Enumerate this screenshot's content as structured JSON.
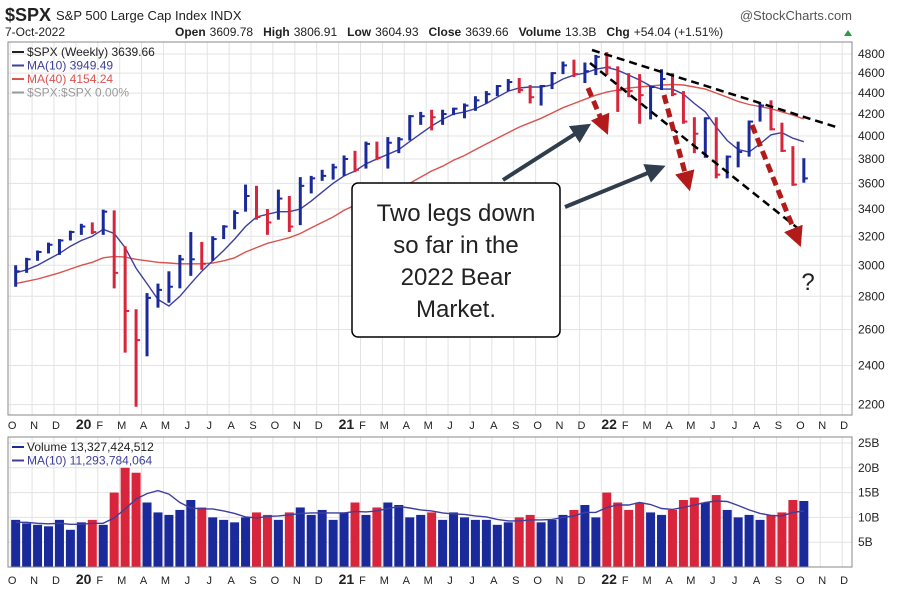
{
  "chart_data": [
    {
      "type": "hlc",
      "title": "$SPX",
      "subtitle": "S&P 500 Large Cap Index INDX",
      "source": "@StockCharts.com",
      "date": "7-Oct-2022",
      "header_items": [
        {
          "label": "Open",
          "value": 3609.78
        },
        {
          "label": "High",
          "value": 3806.91
        },
        {
          "label": "Low",
          "value": 3604.93
        },
        {
          "label": "Close",
          "value": 3639.66
        },
        {
          "label": "Volume",
          "value": "13.3B"
        },
        {
          "label": "Chg",
          "value": "+54.04 (+1.51%)"
        }
      ],
      "annotations": [
        {
          "lines": [
            "Two legs down",
            "so far in the",
            "2022 Bear",
            "Market."
          ]
        },
        {
          "lines": [
            "?"
          ]
        }
      ],
      "log_scale": true,
      "grid": true,
      "xlim": [
        -0.1,
        38.45
      ],
      "xticks": [
        {
          "value": 0,
          "label": "O"
        },
        {
          "value": 1,
          "label": "N"
        },
        {
          "value": 2,
          "label": "D"
        },
        {
          "value": 3,
          "label": "20"
        },
        {
          "value": 4,
          "label": "F"
        },
        {
          "value": 5,
          "label": "M"
        },
        {
          "value": 6,
          "label": "A"
        },
        {
          "value": 7,
          "label": "M"
        },
        {
          "value": 8,
          "label": "J"
        },
        {
          "value": 9,
          "label": "J"
        },
        {
          "value": 10,
          "label": "A"
        },
        {
          "value": 11,
          "label": "S"
        },
        {
          "value": 12,
          "label": "O"
        },
        {
          "value": 13,
          "label": "N"
        },
        {
          "value": 14,
          "label": "D"
        },
        {
          "value": 15,
          "label": "21"
        },
        {
          "value": 16,
          "label": "F"
        },
        {
          "value": 17,
          "label": "M"
        },
        {
          "value": 18,
          "label": "A"
        },
        {
          "value": 19,
          "label": "M"
        },
        {
          "value": 20,
          "label": "J"
        },
        {
          "value": 21,
          "label": "J"
        },
        {
          "value": 22,
          "label": "A"
        },
        {
          "value": 23,
          "label": "S"
        },
        {
          "value": 24,
          "label": "O"
        },
        {
          "value": 25,
          "label": "N"
        },
        {
          "value": 26,
          "label": "D"
        },
        {
          "value": 27,
          "label": "22"
        },
        {
          "value": 28,
          "label": "F"
        },
        {
          "value": 29,
          "label": "M"
        },
        {
          "value": 30,
          "label": "A"
        },
        {
          "value": 31,
          "label": "M"
        },
        {
          "value": 32,
          "label": "J"
        },
        {
          "value": 33,
          "label": "J"
        },
        {
          "value": 34,
          "label": "A"
        },
        {
          "value": 35,
          "label": "S"
        },
        {
          "value": 36,
          "label": "O"
        },
        {
          "value": 37,
          "label": "N"
        },
        {
          "value": 38,
          "label": "D"
        }
      ],
      "ylim": [
        2150,
        4930
      ],
      "yticks": [
        2200,
        2400,
        2600,
        2800,
        3000,
        3200,
        3400,
        3600,
        3800,
        4000,
        4200,
        4400,
        4600,
        4800
      ],
      "x": [
        0.25,
        0.75,
        1.25,
        1.75,
        2.25,
        2.75,
        3.25,
        3.75,
        4.25,
        4.75,
        5.25,
        5.75,
        6.25,
        6.75,
        7.25,
        7.75,
        8.25,
        8.75,
        9.25,
        9.75,
        10.25,
        10.75,
        11.25,
        11.75,
        12.25,
        12.75,
        13.25,
        13.75,
        14.25,
        14.75,
        15.25,
        15.75,
        16.25,
        16.75,
        17.25,
        17.75,
        18.25,
        18.75,
        19.25,
        19.75,
        20.25,
        20.75,
        21.25,
        21.75,
        22.25,
        22.75,
        23.25,
        23.75,
        24.25,
        24.75,
        25.25,
        25.75,
        26.25,
        26.75,
        27.25,
        27.75,
        28.25,
        28.75,
        29.25,
        29.75,
        30.25,
        30.75,
        31.25,
        31.75,
        32.25,
        32.75,
        33.25,
        33.75,
        34.25,
        34.75,
        35.25,
        35.75,
        36.25
      ],
      "series": [
        {
          "name": "$SPX (Weekly) 3639.66",
          "type": "hlc",
          "color": "#222222",
          "up_color": "#1b2a9a",
          "down_color": "#d8253c",
          "high": [
            3000,
            3050,
            3100,
            3155,
            3180,
            3240,
            3290,
            3300,
            3395,
            3390,
            3130,
            2720,
            2820,
            2880,
            2960,
            3070,
            3230,
            3160,
            3200,
            3280,
            3390,
            3590,
            3580,
            3400,
            3550,
            3500,
            3650,
            3660,
            3710,
            3760,
            3830,
            3870,
            3950,
            3950,
            3990,
            3990,
            4190,
            4220,
            4240,
            4240,
            4260,
            4300,
            4370,
            4420,
            4480,
            4540,
            4550,
            4480,
            4480,
            4610,
            4720,
            4740,
            4710,
            4790,
            4820,
            4670,
            4600,
            4590,
            4470,
            4640,
            4600,
            4420,
            4170,
            4170,
            4170,
            3830,
            3950,
            4140,
            4300,
            4330,
            4120,
            3910,
            3806.91
          ],
          "low": [
            2860,
            2950,
            3030,
            3080,
            3070,
            3170,
            3210,
            3215,
            3210,
            2850,
            2470,
            2190,
            2450,
            2730,
            2760,
            2850,
            2930,
            2970,
            3030,
            3180,
            3250,
            3380,
            3320,
            3210,
            3320,
            3230,
            3280,
            3520,
            3620,
            3630,
            3660,
            3690,
            3720,
            3790,
            3720,
            3850,
            3960,
            4100,
            4050,
            4100,
            4190,
            4160,
            4230,
            4300,
            4370,
            4420,
            4400,
            4300,
            4280,
            4440,
            4590,
            4560,
            4500,
            4580,
            4580,
            4220,
            4360,
            4110,
            4150,
            4430,
            4370,
            4110,
            3850,
            3810,
            3640,
            3640,
            3730,
            3820,
            4130,
            4050,
            3860,
            3580,
            3604.93
          ],
          "close": [
            2960,
            3040,
            3090,
            3140,
            3170,
            3230,
            3270,
            3230,
            3380,
            2950,
            2710,
            2540,
            2790,
            2840,
            2860,
            3040,
            3040,
            3010,
            3180,
            3270,
            3370,
            3500,
            3340,
            3300,
            3480,
            3270,
            3580,
            3640,
            3660,
            3730,
            3800,
            3710,
            3930,
            3810,
            3940,
            3970,
            4180,
            4180,
            4170,
            4200,
            4250,
            4280,
            4330,
            4390,
            4470,
            4510,
            4430,
            4360,
            4470,
            4600,
            4680,
            4590,
            4620,
            4770,
            4660,
            4430,
            4420,
            4380,
            4460,
            4540,
            4390,
            4130,
            4020,
            4160,
            3670,
            3820,
            3860,
            4130,
            4280,
            4060,
            3870,
            3590,
            3639.66
          ]
        },
        {
          "name": "MA(10) 3949.49",
          "type": "line",
          "color": "#3c3f9e",
          "values": [
            2950,
            2970,
            3000,
            3040,
            3080,
            3130,
            3170,
            3200,
            3250,
            3220,
            3120,
            2980,
            2880,
            2780,
            2740,
            2800,
            2880,
            2960,
            3030,
            3100,
            3180,
            3270,
            3340,
            3360,
            3380,
            3380,
            3400,
            3460,
            3530,
            3600,
            3660,
            3700,
            3760,
            3800,
            3840,
            3880,
            3950,
            4020,
            4090,
            4150,
            4200,
            4220,
            4250,
            4300,
            4360,
            4420,
            4450,
            4460,
            4460,
            4480,
            4540,
            4580,
            4600,
            4640,
            4660,
            4630,
            4580,
            4530,
            4470,
            4440,
            4440,
            4390,
            4300,
            4220,
            4080,
            3960,
            3880,
            3860,
            3930,
            4010,
            4030,
            3980,
            3949.49
          ]
        },
        {
          "name": "MA(40) 4154.24",
          "type": "line",
          "color": "#d9534f",
          "values": [
            2880,
            2895,
            2910,
            2930,
            2950,
            2975,
            3000,
            3020,
            3050,
            3060,
            3055,
            3040,
            3030,
            3020,
            3015,
            3010,
            3010,
            3010,
            3015,
            3030,
            3050,
            3090,
            3120,
            3150,
            3170,
            3190,
            3220,
            3260,
            3300,
            3340,
            3390,
            3430,
            3460,
            3490,
            3520,
            3560,
            3600,
            3650,
            3700,
            3740,
            3790,
            3830,
            3880,
            3930,
            3980,
            4030,
            4080,
            4120,
            4160,
            4210,
            4260,
            4300,
            4340,
            4380,
            4410,
            4430,
            4450,
            4460,
            4470,
            4480,
            4485,
            4480,
            4460,
            4440,
            4400,
            4360,
            4320,
            4290,
            4270,
            4250,
            4220,
            4190,
            4154.24
          ]
        },
        {
          "name": "$SPX:$SPX 0.00%",
          "type": "legend",
          "color": "#9a9a9a"
        }
      ]
    },
    {
      "type": "bar",
      "up_color": "#1b2a9a",
      "down_color": "#d8253c",
      "ylim": [
        0,
        26.2
      ],
      "yticks": [
        {
          "value": 5,
          "label": "5B"
        },
        {
          "value": 10,
          "label": "10B"
        },
        {
          "value": 15,
          "label": "15B"
        },
        {
          "value": 20,
          "label": "20B"
        },
        {
          "value": 25,
          "label": "25B"
        }
      ],
      "series": [
        {
          "name": "Volume 13,327,424,512",
          "type": "bar",
          "color": "#1b2a9a",
          "values": [
            9.5,
            8.8,
            8.5,
            8.2,
            9.5,
            7.5,
            9,
            9.5,
            8.5,
            15,
            20,
            19,
            13,
            11,
            10.5,
            11.5,
            13.5,
            12,
            10,
            9.5,
            9,
            10,
            11,
            10.5,
            9.5,
            11,
            12,
            10.5,
            11.5,
            9.5,
            11,
            13,
            10.5,
            12,
            13,
            12.5,
            10,
            10.5,
            11,
            9.5,
            11,
            10,
            9.5,
            9.5,
            8.5,
            9,
            10,
            10.5,
            9,
            9.5,
            10.5,
            11.5,
            12.5,
            10,
            15,
            13,
            11.5,
            13,
            11,
            10.5,
            11.5,
            13.5,
            14,
            13,
            14.5,
            11.5,
            10,
            10.5,
            9.5,
            10.5,
            11,
            13.5,
            13.3
          ]
        },
        {
          "name": "MA(10) 11,293,784,064",
          "type": "line",
          "color": "#3c3f9e",
          "values": [
            9,
            9,
            8.8,
            8.7,
            8.8,
            8.6,
            8.6,
            8.8,
            8.8,
            9.9,
            11.7,
            13.7,
            14.8,
            15.4,
            14.7,
            13,
            11.9,
            11.7,
            11.7,
            11.3,
            10.8,
            10.1,
            9.9,
            10.2,
            10.3,
            10.5,
            10.8,
            10.9,
            10.9,
            10.9,
            10.9,
            11.2,
            11.1,
            11.3,
            11.8,
            12.2,
            11.9,
            11.5,
            11.3,
            10.9,
            10.7,
            10.6,
            10.3,
            10.1,
            9.6,
            9.3,
            9.3,
            9.5,
            9.5,
            9.6,
            10,
            10.3,
            11,
            11,
            12,
            12.5,
            12.5,
            13,
            12.6,
            11.8,
            11.6,
            12,
            12.5,
            13,
            13.3,
            13.2,
            12.4,
            11.5,
            10.8,
            10.4,
            10.3,
            11,
            11.29
          ]
        }
      ]
    }
  ]
}
